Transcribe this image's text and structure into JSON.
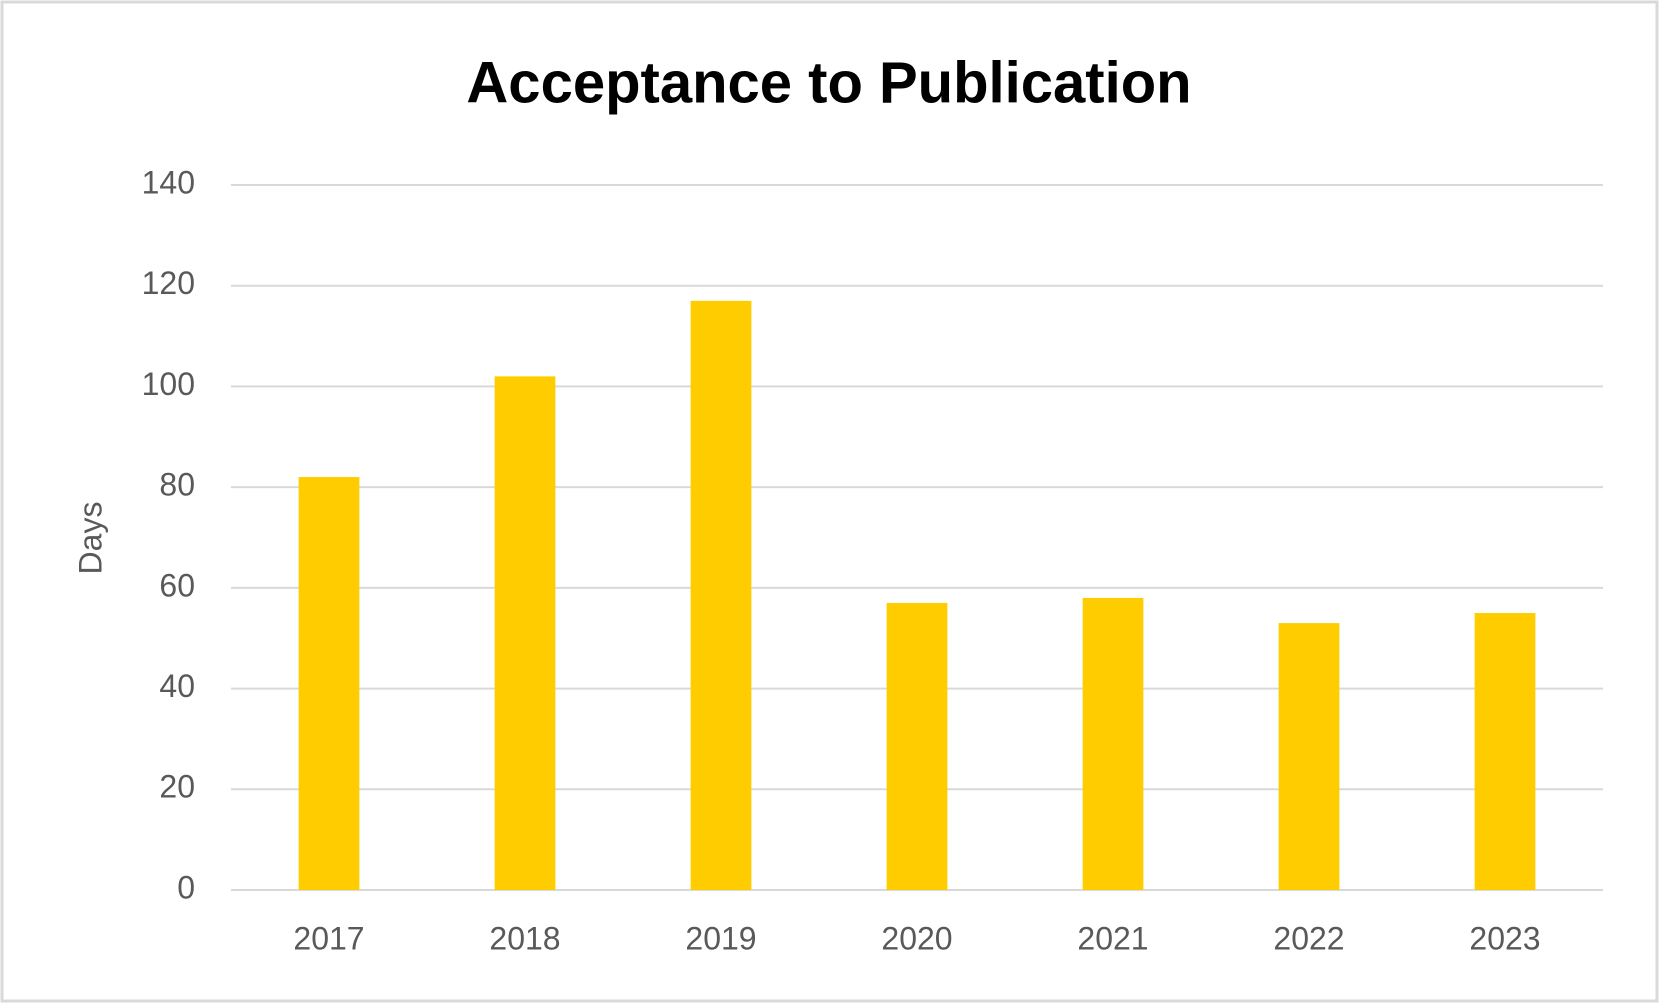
{
  "chart_data": {
    "type": "bar",
    "title": "Acceptance to Publication",
    "y_label": "Days",
    "categories": [
      "2017",
      "2018",
      "2019",
      "2020",
      "2021",
      "2022",
      "2023"
    ],
    "values": [
      82,
      102,
      117,
      57,
      58,
      53,
      55
    ],
    "color": "#ffcc00",
    "ylim": [
      0,
      140
    ],
    "yticks": [
      0,
      20,
      40,
      60,
      80,
      100,
      120,
      140
    ],
    "grid": true
  }
}
